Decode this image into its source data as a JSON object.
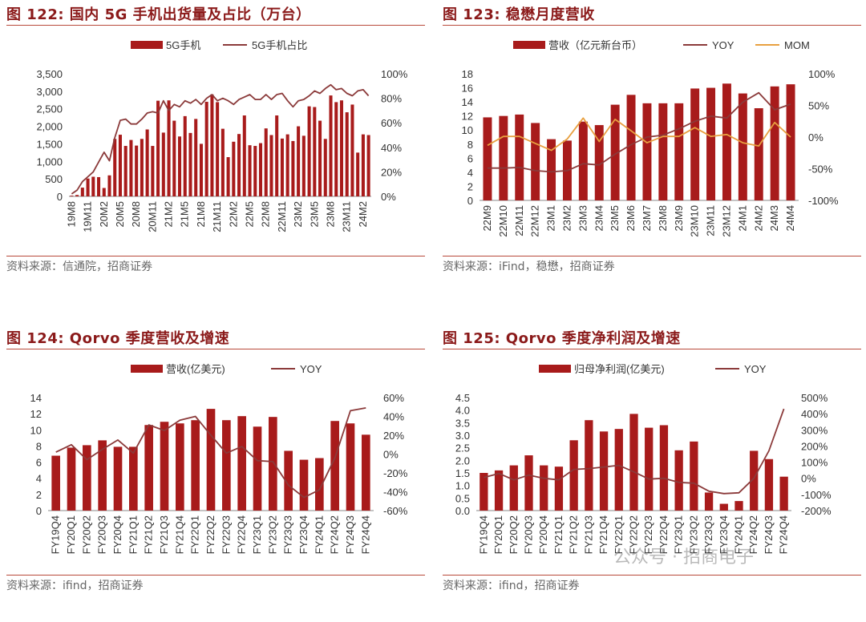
{
  "colors": {
    "bar": "#a81b1b",
    "yoy": "#8b3a3a",
    "mom": "#e8a040",
    "accent": "#8b1a1a",
    "rule": "#b94a3b"
  },
  "watermark": "公众号 · 招商电子",
  "panels": [
    {
      "title": "图 122:  国内 5G 手机出货量及占比（万台）",
      "source": "资料来源：信通院，招商证券",
      "legend": [
        "5G手机",
        "5G手机占比"
      ]
    },
    {
      "title": "图 123:  稳懋月度营收",
      "source": "资料来源：iFind，稳懋，招商证券",
      "legend": [
        "营收（亿元新台币）",
        "YOY",
        "MOM"
      ]
    },
    {
      "title": "图 124:  Qorvo 季度营收及增速",
      "source": "资料来源：ifind，招商证券",
      "legend": [
        "营收(亿美元)",
        "YOY"
      ]
    },
    {
      "title": "图 125:  Qorvo 季度净利润及增速",
      "source": "资料来源：ifind，招商证券",
      "legend": [
        "归母净利润(亿美元)",
        "YOY"
      ]
    }
  ],
  "chart_data": [
    {
      "type": "bar+line",
      "title": "国内 5G 手机出货量及占比（万台）",
      "categories": [
        "19M8",
        "19M9",
        "19M10",
        "19M11",
        "19M12",
        "20M1",
        "20M2",
        "20M3",
        "20M4",
        "20M5",
        "20M6",
        "20M7",
        "20M8",
        "20M9",
        "20M10",
        "20M11",
        "20M12",
        "21M1",
        "21M2",
        "21M3",
        "21M4",
        "21M5",
        "21M6",
        "21M7",
        "21M8",
        "21M9",
        "21M10",
        "21M11",
        "21M12",
        "22M1",
        "22M2",
        "22M3",
        "22M4",
        "22M5",
        "22M6",
        "22M7",
        "22M8",
        "22M9",
        "22M10",
        "22M11",
        "22M12",
        "23M1",
        "23M2",
        "23M3",
        "23M4",
        "23M5",
        "23M6",
        "23M7",
        "23M8",
        "23M9",
        "23M10",
        "23M11",
        "23M12",
        "24M1",
        "24M2",
        "24M3"
      ],
      "x_tick_labels": [
        "19M8",
        "19M11",
        "20M2",
        "20M5",
        "20M8",
        "20M11",
        "21M2",
        "21M5",
        "21M8",
        "21M11",
        "22M2",
        "22M5",
        "22M8",
        "22M11",
        "23M2",
        "23M5",
        "23M8",
        "23M11",
        "24M2"
      ],
      "series": [
        {
          "name": "5G手机",
          "kind": "bar",
          "axis": "left",
          "values": [
            20,
            40,
            250,
            510,
            560,
            550,
            240,
            600,
            1640,
            1760,
            1440,
            1610,
            1450,
            1640,
            1910,
            1440,
            2730,
            1820,
            2740,
            2160,
            1710,
            2290,
            1810,
            2210,
            1500,
            2700,
            2910,
            2690,
            1930,
            1120,
            1560,
            1780,
            2310,
            1460,
            1440,
            1520,
            1940,
            1750,
            2310,
            1650,
            1770,
            1580,
            2000,
            1730,
            2570,
            2550,
            2160,
            1640,
            2880,
            2690,
            2740,
            2400,
            2620,
            1250,
            1770,
            1750
          ]
        },
        {
          "name": "5G手机占比",
          "kind": "line",
          "axis": "right",
          "values": [
            0.02,
            0.05,
            0.12,
            0.16,
            0.2,
            0.28,
            0.36,
            0.29,
            0.48,
            0.62,
            0.63,
            0.59,
            0.59,
            0.63,
            0.68,
            0.69,
            0.68,
            0.78,
            0.7,
            0.75,
            0.73,
            0.78,
            0.76,
            0.79,
            0.75,
            0.8,
            0.83,
            0.78,
            0.8,
            0.78,
            0.75,
            0.79,
            0.81,
            0.83,
            0.79,
            0.79,
            0.83,
            0.79,
            0.83,
            0.84,
            0.78,
            0.73,
            0.78,
            0.79,
            0.82,
            0.86,
            0.84,
            0.88,
            0.91,
            0.87,
            0.88,
            0.84,
            0.82,
            0.86,
            0.87,
            0.82
          ]
        }
      ],
      "y_left": {
        "min": 0,
        "max": 3500,
        "ticks": [
          "0",
          "500",
          "1,000",
          "1,500",
          "2,000",
          "2,500",
          "3,000",
          "3,500"
        ]
      },
      "y_right": {
        "min": 0,
        "max": 1.0,
        "ticks": [
          "0%",
          "20%",
          "40%",
          "60%",
          "80%",
          "100%"
        ]
      }
    },
    {
      "type": "bar+line",
      "title": "稳懋月度营收",
      "categories": [
        "22M9",
        "22M10",
        "22M11",
        "22M12",
        "23M1",
        "23M2",
        "23M3",
        "23M4",
        "23M5",
        "23M6",
        "23M7",
        "23M8",
        "23M9",
        "23M10",
        "23M11",
        "23M12",
        "24M1",
        "24M2",
        "24M3",
        "24M4"
      ],
      "series": [
        {
          "name": "营收（亿元新台币）",
          "kind": "bar",
          "axis": "left",
          "values": [
            11.8,
            12.0,
            12.2,
            11.0,
            8.7,
            8.5,
            11.2,
            10.7,
            13.6,
            15.0,
            13.8,
            13.8,
            13.8,
            15.9,
            16.0,
            16.6,
            15.2,
            13.1,
            16.2,
            16.5
          ]
        },
        {
          "name": "YOY",
          "kind": "line",
          "axis": "right",
          "values": [
            -0.49,
            -0.49,
            -0.48,
            -0.53,
            -0.55,
            -0.53,
            -0.42,
            -0.44,
            -0.27,
            -0.12,
            0.0,
            0.03,
            0.13,
            0.25,
            0.33,
            0.3,
            0.55,
            0.7,
            0.43,
            0.52
          ]
        },
        {
          "name": "MOM",
          "kind": "line",
          "axis": "right",
          "values": [
            -0.13,
            0.01,
            0.01,
            -0.1,
            -0.21,
            -0.03,
            0.3,
            -0.07,
            0.28,
            0.1,
            -0.09,
            0.01,
            0.01,
            0.15,
            0.01,
            0.04,
            -0.09,
            -0.14,
            0.23,
            0.0
          ]
        }
      ],
      "y_left": {
        "min": 0,
        "max": 18,
        "ticks": [
          "0",
          "2",
          "4",
          "6",
          "8",
          "10",
          "12",
          "14",
          "16",
          "18"
        ]
      },
      "y_right": {
        "min": -1.0,
        "max": 1.0,
        "ticks": [
          "-100%",
          "-50%",
          "0%",
          "50%",
          "100%"
        ]
      }
    },
    {
      "type": "bar+line",
      "title": "Qorvo 季度营收及增速",
      "categories": [
        "FY19Q4",
        "FY20Q1",
        "FY20Q2",
        "FY20Q3",
        "FY20Q4",
        "FY21Q1",
        "FY21Q2",
        "FY21Q3",
        "FY21Q4",
        "FY22Q1",
        "FY22Q2",
        "FY22Q3",
        "FY22Q4",
        "FY23Q1",
        "FY23Q2",
        "FY23Q3",
        "FY23Q4",
        "FY24Q1",
        "FY24Q2",
        "FY24Q3",
        "FY24Q4"
      ],
      "series": [
        {
          "name": "营收(亿美元)",
          "kind": "bar",
          "axis": "left",
          "values": [
            6.8,
            7.8,
            8.1,
            8.7,
            7.9,
            7.9,
            10.6,
            11.0,
            10.8,
            11.2,
            12.6,
            11.2,
            11.7,
            10.4,
            11.6,
            7.4,
            6.3,
            6.5,
            11.1,
            10.8,
            9.4
          ]
        },
        {
          "name": "YOY",
          "kind": "line",
          "axis": "right",
          "values": [
            0.02,
            0.1,
            -0.06,
            0.05,
            0.15,
            0.01,
            0.31,
            0.25,
            0.36,
            0.4,
            0.2,
            0.01,
            0.08,
            -0.07,
            -0.08,
            -0.33,
            -0.46,
            -0.38,
            -0.04,
            0.46,
            0.49
          ]
        }
      ],
      "y_left": {
        "min": 0,
        "max": 14,
        "ticks": [
          "0",
          "2",
          "4",
          "6",
          "8",
          "10",
          "12",
          "14"
        ]
      },
      "y_right": {
        "min": -0.6,
        "max": 0.6,
        "ticks": [
          "-60%",
          "-40%",
          "-20%",
          "0%",
          "20%",
          "40%",
          "60%"
        ]
      }
    },
    {
      "type": "bar+line",
      "title": "Qorvo 季度净利润及增速",
      "categories": [
        "FY19Q4",
        "FY20Q1",
        "FY20Q2",
        "FY20Q3",
        "FY20Q4",
        "FY21Q1",
        "FY21Q2",
        "FY21Q3",
        "FY21Q4",
        "FY22Q1",
        "FY22Q2",
        "FY22Q3",
        "FY22Q4",
        "FY23Q1",
        "FY23Q2",
        "FY23Q3",
        "FY23Q4",
        "FY24Q1",
        "FY24Q2",
        "FY24Q3",
        "FY24Q4"
      ],
      "series": [
        {
          "name": "归母净利润(亿美元)",
          "kind": "bar",
          "axis": "left",
          "values": [
            1.5,
            1.6,
            1.8,
            2.2,
            1.8,
            1.75,
            2.8,
            3.6,
            3.15,
            3.25,
            3.85,
            3.3,
            3.4,
            2.4,
            2.75,
            0.72,
            0.27,
            0.38,
            2.38,
            2.05,
            1.35
          ]
        },
        {
          "name": "YOY",
          "kind": "line",
          "axis": "right",
          "values": [
            0.05,
            0.3,
            -0.1,
            0.2,
            0.0,
            -0.1,
            0.55,
            0.6,
            0.7,
            0.8,
            0.4,
            -0.05,
            0.0,
            -0.25,
            -0.3,
            -0.8,
            -0.95,
            -0.9,
            0.0,
            1.7,
            4.3
          ]
        }
      ],
      "y_left": {
        "min": 0,
        "max": 4.5,
        "ticks": [
          "0.0",
          "0.5",
          "1.0",
          "1.5",
          "2.0",
          "2.5",
          "3.0",
          "3.5",
          "4.0",
          "4.5"
        ]
      },
      "y_right": {
        "min": -2.0,
        "max": 5.0,
        "ticks": [
          "-200%",
          "-100%",
          "0%",
          "100%",
          "200%",
          "300%",
          "400%",
          "500%"
        ]
      }
    }
  ]
}
